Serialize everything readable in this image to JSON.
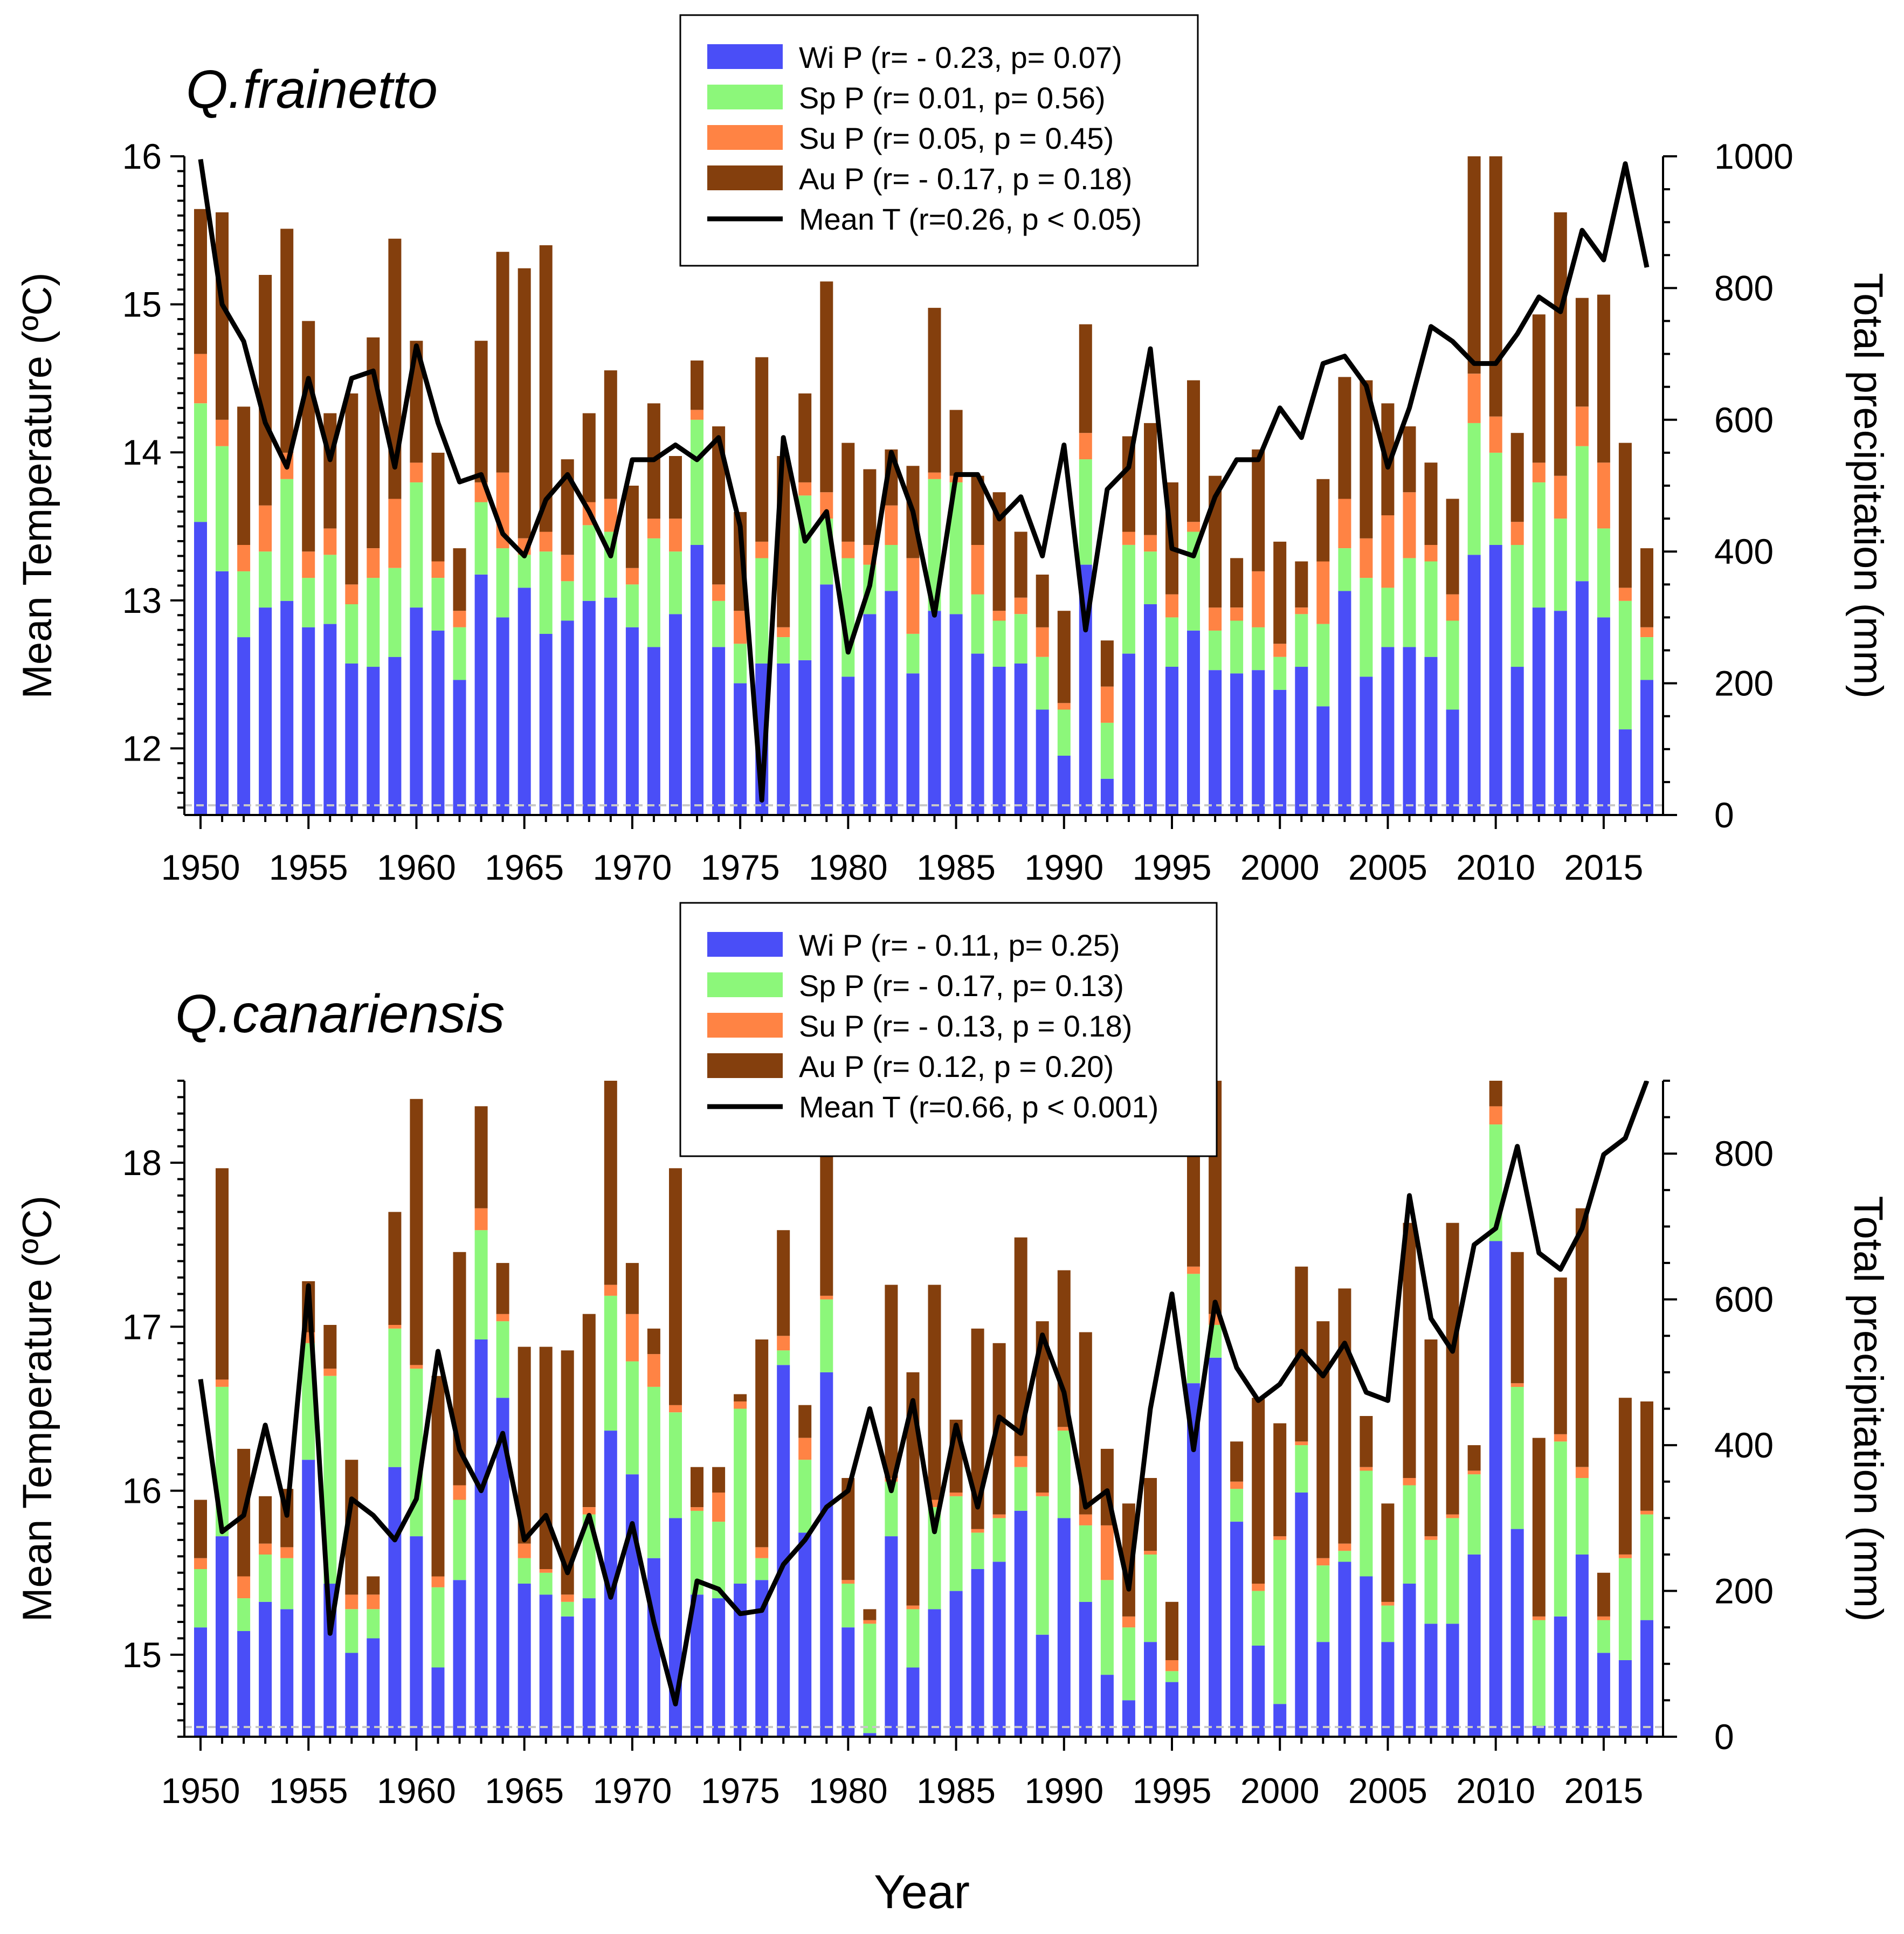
{
  "figure": {
    "xlabel": "Year"
  },
  "chart_data": [
    {
      "type": "stacked-bar+line",
      "title": "Q.frainetto",
      "xlabel": "Year",
      "ylabel": "Mean Temperature (ºC)",
      "y2label": "Total precipitation (mm)",
      "xlim": [
        1950,
        2017
      ],
      "ylim": [
        11.55,
        16.0
      ],
      "y2lim": [
        0,
        1000
      ],
      "x_ticks": [
        1950,
        1955,
        1960,
        1965,
        1970,
        1975,
        1980,
        1985,
        1990,
        1995,
        2000,
        2005,
        2010,
        2015
      ],
      "y_ticks": [
        12,
        13,
        14,
        15,
        16
      ],
      "y2_ticks": [
        0,
        200,
        400,
        600,
        800,
        1000
      ],
      "legend": [
        {
          "label": "Wi P (r= - 0.23, p= 0.07)",
          "color": "#4a4ef7",
          "kind": "bar"
        },
        {
          "label": "Sp P (r=   0.01, p= 0.56)",
          "color": "#8cf77a",
          "kind": "bar"
        },
        {
          "label": "Su P (r=   0.05, p = 0.45)",
          "color": "#ff8344",
          "kind": "bar"
        },
        {
          "label": "Au P (r= - 0.17, p = 0.18)",
          "color": "#843f0d",
          "kind": "bar"
        },
        {
          "label": "Mean T (r=0.26, p < 0.05)",
          "color": "#000000",
          "kind": "line"
        }
      ],
      "years": [
        1950,
        1951,
        1952,
        1953,
        1954,
        1955,
        1956,
        1957,
        1958,
        1959,
        1960,
        1961,
        1962,
        1963,
        1964,
        1965,
        1966,
        1967,
        1968,
        1969,
        1970,
        1971,
        1972,
        1973,
        1974,
        1975,
        1976,
        1977,
        1978,
        1979,
        1980,
        1981,
        1982,
        1983,
        1984,
        1985,
        1986,
        1987,
        1988,
        1989,
        1990,
        1991,
        1992,
        1993,
        1994,
        1995,
        1996,
        1997,
        1998,
        1999,
        2000,
        2001,
        2002,
        2003,
        2004,
        2005,
        2006,
        2007,
        2008,
        2009,
        2010,
        2011,
        2012,
        2013,
        2014,
        2015,
        2016,
        2017
      ],
      "series": [
        {
          "name": "Wi P",
          "values": [
            445,
            370,
            270,
            315,
            325,
            285,
            290,
            230,
            225,
            240,
            315,
            280,
            205,
            365,
            300,
            345,
            275,
            295,
            325,
            330,
            285,
            255,
            305,
            410,
            255,
            200,
            230,
            230,
            235,
            350,
            210,
            305,
            340,
            215,
            310,
            305,
            245,
            225,
            230,
            160,
            90,
            380,
            55,
            245,
            320,
            225,
            280,
            220,
            215,
            220,
            190,
            225,
            165,
            340,
            210,
            255,
            255,
            240,
            160,
            395,
            410,
            225,
            315,
            310,
            355,
            300,
            130,
            205
          ]
        },
        {
          "name": "Sp P",
          "values": [
            180,
            190,
            100,
            85,
            185,
            75,
            105,
            90,
            135,
            135,
            190,
            80,
            80,
            110,
            105,
            50,
            125,
            60,
            115,
            100,
            65,
            165,
            95,
            190,
            70,
            60,
            160,
            40,
            250,
            100,
            180,
            75,
            70,
            60,
            200,
            200,
            90,
            70,
            75,
            80,
            70,
            160,
            85,
            165,
            80,
            75,
            150,
            60,
            80,
            65,
            50,
            80,
            125,
            65,
            150,
            90,
            135,
            145,
            135,
            200,
            140,
            185,
            190,
            140,
            205,
            135,
            195,
            65
          ]
        },
        {
          "name": "Su P",
          "values": [
            75,
            40,
            40,
            70,
            40,
            40,
            40,
            30,
            45,
            105,
            30,
            25,
            25,
            30,
            115,
            25,
            30,
            40,
            35,
            50,
            25,
            30,
            50,
            15,
            25,
            50,
            25,
            15,
            20,
            40,
            25,
            30,
            60,
            115,
            10,
            10,
            75,
            15,
            25,
            45,
            10,
            40,
            55,
            20,
            25,
            35,
            15,
            35,
            20,
            85,
            20,
            10,
            95,
            75,
            60,
            110,
            100,
            25,
            40,
            75,
            55,
            35,
            30,
            65,
            60,
            100,
            20,
            15
          ]
        },
        {
          "name": "Au P",
          "values": [
            220,
            315,
            210,
            350,
            340,
            350,
            175,
            290,
            320,
            395,
            185,
            165,
            95,
            215,
            335,
            410,
            435,
            145,
            135,
            195,
            125,
            175,
            95,
            75,
            240,
            150,
            280,
            260,
            135,
            320,
            150,
            115,
            85,
            140,
            250,
            100,
            105,
            180,
            100,
            80,
            140,
            165,
            70,
            145,
            170,
            170,
            215,
            200,
            75,
            185,
            155,
            70,
            125,
            185,
            240,
            170,
            100,
            125,
            145,
            570,
            560,
            135,
            225,
            400,
            165,
            255,
            220,
            120
          ]
        },
        {
          "name": "Mean T",
          "values": [
            15.98,
            15.0,
            14.75,
            14.2,
            13.9,
            14.5,
            13.95,
            14.5,
            14.55,
            13.9,
            14.72,
            14.2,
            13.8,
            13.85,
            13.45,
            13.3,
            13.68,
            13.85,
            13.6,
            13.3,
            13.95,
            13.95,
            14.05,
            13.95,
            14.1,
            13.5,
            11.65,
            14.1,
            13.4,
            13.6,
            12.65,
            13.1,
            14.0,
            13.6,
            12.9,
            13.85,
            13.85,
            13.55,
            13.7,
            13.3,
            14.05,
            12.8,
            13.75,
            13.9,
            14.7,
            13.35,
            13.3,
            13.7,
            13.95,
            13.95,
            14.3,
            14.1,
            14.6,
            14.65,
            14.45,
            13.9,
            14.3,
            14.85,
            14.75,
            14.6,
            14.6,
            14.8,
            15.05,
            14.95,
            15.5,
            15.3,
            15.95,
            15.25
          ]
        }
      ]
    },
    {
      "type": "stacked-bar+line",
      "title": "Q.canariensis",
      "xlabel": "Year",
      "ylabel": "Mean Temperature (ºC)",
      "y2label": "Total precipitation (mm)",
      "xlim": [
        1950,
        2017
      ],
      "ylim": [
        14.5,
        18.5
      ],
      "y2lim": [
        0,
        900
      ],
      "x_ticks": [
        1950,
        1955,
        1960,
        1965,
        1970,
        1975,
        1980,
        1985,
        1990,
        1995,
        2000,
        2005,
        2010,
        2015
      ],
      "y_ticks": [
        15,
        16,
        17,
        18
      ],
      "y2_ticks": [
        0,
        200,
        400,
        600,
        800
      ],
      "legend": [
        {
          "label": "Wi P (r= - 0.11, p= 0.25)",
          "color": "#4a4ef7",
          "kind": "bar"
        },
        {
          "label": "Sp P (r= - 0.17, p= 0.13)",
          "color": "#8cf77a",
          "kind": "bar"
        },
        {
          "label": "Su P (r= - 0.13, p = 0.18)",
          "color": "#ff8344",
          "kind": "bar"
        },
        {
          "label": "Au P (r=   0.12, p = 0.20)",
          "color": "#843f0d",
          "kind": "bar"
        },
        {
          "label": "Mean T (r=0.66, p < 0.001)",
          "color": "#000000",
          "kind": "line"
        }
      ],
      "years": [
        1950,
        1951,
        1952,
        1953,
        1954,
        1955,
        1956,
        1957,
        1958,
        1959,
        1960,
        1961,
        1962,
        1963,
        1964,
        1965,
        1966,
        1967,
        1968,
        1969,
        1970,
        1971,
        1972,
        1973,
        1974,
        1975,
        1976,
        1977,
        1978,
        1979,
        1980,
        1981,
        1982,
        1983,
        1984,
        1985,
        1986,
        1987,
        1988,
        1989,
        1990,
        1991,
        1992,
        1993,
        1994,
        1995,
        1996,
        1997,
        1998,
        1999,
        2000,
        2001,
        2002,
        2003,
        2004,
        2005,
        2006,
        2007,
        2008,
        2009,
        2010,
        2011,
        2012,
        2013,
        2014,
        2015,
        2016,
        2017
      ],
      "series": [
        {
          "name": "Wi P",
          "values": [
            150,
            275,
            145,
            185,
            175,
            380,
            210,
            115,
            135,
            370,
            275,
            95,
            215,
            545,
            465,
            210,
            195,
            165,
            190,
            420,
            360,
            245,
            300,
            195,
            190,
            210,
            215,
            510,
            280,
            500,
            150,
            5,
            275,
            95,
            175,
            200,
            230,
            240,
            310,
            140,
            300,
            185,
            85,
            50,
            130,
            75,
            485,
            520,
            295,
            125,
            45,
            335,
            130,
            240,
            220,
            130,
            210,
            155,
            155,
            250,
            680,
            285,
            15,
            165,
            250,
            115,
            105,
            160
          ]
        },
        {
          "name": "Sp P",
          "values": [
            80,
            205,
            45,
            65,
            70,
            160,
            285,
            60,
            40,
            190,
            230,
            110,
            110,
            150,
            105,
            35,
            30,
            20,
            115,
            185,
            155,
            235,
            145,
            115,
            105,
            240,
            30,
            20,
            100,
            100,
            60,
            150,
            75,
            80,
            140,
            130,
            50,
            60,
            60,
            190,
            120,
            105,
            130,
            100,
            120,
            15,
            150,
            45,
            45,
            75,
            225,
            65,
            105,
            15,
            145,
            50,
            135,
            115,
            145,
            110,
            160,
            195,
            145,
            240,
            105,
            45,
            140,
            145
          ]
        },
        {
          "name": "Su P",
          "values": [
            15,
            10,
            30,
            15,
            15,
            15,
            10,
            20,
            20,
            5,
            5,
            15,
            20,
            30,
            10,
            20,
            5,
            10,
            10,
            15,
            65,
            45,
            10,
            5,
            40,
            10,
            15,
            20,
            30,
            5,
            5,
            5,
            5,
            5,
            10,
            5,
            5,
            5,
            15,
            5,
            5,
            15,
            75,
            15,
            5,
            15,
            10,
            15,
            10,
            10,
            5,
            5,
            10,
            10,
            5,
            5,
            10,
            5,
            5,
            5,
            25,
            5,
            5,
            10,
            15,
            5,
            5,
            5
          ]
        },
        {
          "name": "Au P",
          "values": [
            80,
            290,
            175,
            65,
            80,
            70,
            60,
            185,
            25,
            155,
            365,
            275,
            320,
            140,
            70,
            270,
            305,
            335,
            265,
            380,
            70,
            35,
            325,
            55,
            35,
            10,
            285,
            145,
            45,
            320,
            140,
            15,
            265,
            320,
            295,
            100,
            275,
            235,
            300,
            235,
            215,
            250,
            105,
            155,
            100,
            80,
            490,
            420,
            55,
            255,
            155,
            240,
            325,
            350,
            70,
            135,
            350,
            270,
            400,
            35,
            325,
            180,
            245,
            215,
            355,
            60,
            215,
            150
          ]
        },
        {
          "name": "Mean T",
          "values": [
            16.68,
            15.75,
            15.85,
            16.4,
            15.85,
            17.25,
            15.13,
            15.95,
            15.85,
            15.7,
            15.95,
            16.85,
            16.25,
            16.0,
            16.35,
            15.7,
            15.85,
            15.5,
            15.85,
            15.35,
            15.8,
            15.2,
            14.7,
            15.45,
            15.4,
            15.25,
            15.27,
            15.55,
            15.7,
            15.9,
            16.0,
            16.5,
            16.0,
            16.55,
            15.75,
            16.4,
            15.9,
            16.45,
            16.35,
            16.95,
            16.6,
            15.9,
            16.0,
            15.4,
            16.5,
            17.2,
            16.25,
            17.15,
            16.75,
            16.55,
            16.65,
            16.85,
            16.7,
            16.9,
            16.6,
            16.55,
            17.8,
            17.05,
            16.85,
            17.5,
            17.6,
            18.1,
            17.45,
            17.35,
            17.6,
            18.05,
            18.15,
            18.5
          ]
        }
      ]
    }
  ]
}
